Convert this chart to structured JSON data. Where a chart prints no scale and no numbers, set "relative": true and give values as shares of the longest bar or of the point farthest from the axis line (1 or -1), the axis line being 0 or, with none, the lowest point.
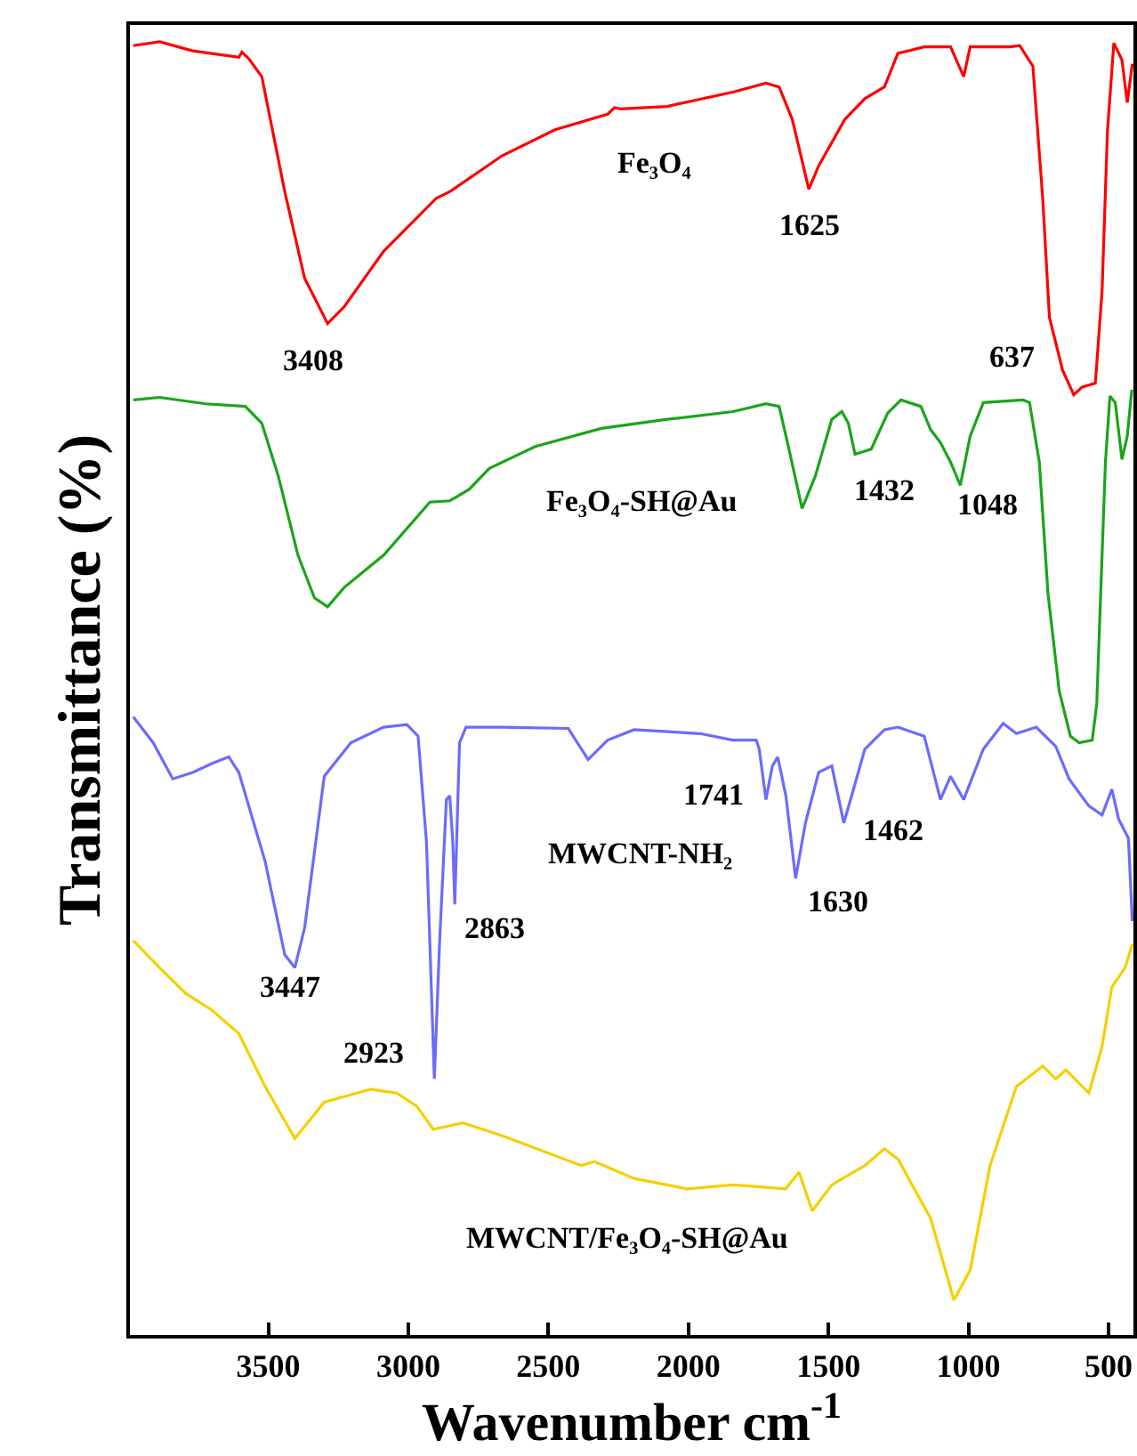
{
  "chart_data": {
    "type": "line",
    "relative": true,
    "xlabel": "Wavenumber cm$^{-1}$",
    "ylabel": "Transmittance (%)",
    "xlim": [
      3994,
      411
    ],
    "xticks": [
      3500,
      3000,
      2500,
      2000,
      1500,
      1000,
      500
    ],
    "grid": false,
    "marker": "none",
    "line_style": "solid",
    "series": [
      {
        "color": "#ff0000",
        "x": [
          3982,
          3888,
          3770,
          3605,
          3594,
          3570,
          3523,
          3488,
          3441,
          3370,
          3288,
          3229,
          3088,
          2900,
          2852,
          2664,
          2476,
          2288,
          2264,
          2241,
          2076,
          1841,
          1723,
          1676,
          1629,
          1570,
          1535,
          1441,
          1370,
          1300,
          1252,
          1158,
          1064,
          1017,
          994,
          852,
          817,
          770,
          735,
          711,
          664,
          624,
          594,
          547,
          523,
          504,
          481,
          452,
          433,
          415
        ],
        "values": [
          0.997,
          1,
          0.993,
          0.988,
          0.992,
          0.987,
          0.973,
          0.935,
          0.884,
          0.817,
          0.782,
          0.795,
          0.838,
          0.879,
          0.884,
          0.912,
          0.932,
          0.944,
          0.949,
          0.948,
          0.95,
          0.961,
          0.968,
          0.965,
          0.94,
          0.886,
          0.904,
          0.94,
          0.956,
          0.965,
          0.991,
          0.996,
          0.996,
          0.973,
          0.996,
          0.996,
          0.997,
          0.981,
          0.879,
          0.787,
          0.746,
          0.727,
          0.733,
          0.736,
          0.807,
          0.93,
          0.999,
          0.986,
          0.953,
          0.983
        ]
      },
      {
        "color": "#1aa51a",
        "x": [
          3982,
          3888,
          3723,
          3582,
          3523,
          3464,
          3394,
          3335,
          3288,
          3229,
          3088,
          2923,
          2852,
          2782,
          2711,
          2547,
          2311,
          2076,
          1841,
          1723,
          1676,
          1641,
          1594,
          1547,
          1488,
          1452,
          1429,
          1405,
          1347,
          1288,
          1241,
          1170,
          1135,
          1100,
          1064,
          1029,
          994,
          947,
          805,
          782,
          747,
          716,
          676,
          636,
          605,
          558,
          542,
          528,
          511,
          495,
          476,
          452,
          433,
          417
        ],
        "values": [
          0.723,
          0.725,
          0.72,
          0.718,
          0.705,
          0.664,
          0.603,
          0.57,
          0.563,
          0.578,
          0.603,
          0.644,
          0.645,
          0.654,
          0.67,
          0.687,
          0.701,
          0.708,
          0.714,
          0.72,
          0.718,
          0.685,
          0.639,
          0.664,
          0.708,
          0.714,
          0.705,
          0.681,
          0.685,
          0.713,
          0.723,
          0.718,
          0.7,
          0.69,
          0.675,
          0.657,
          0.695,
          0.721,
          0.723,
          0.721,
          0.675,
          0.573,
          0.498,
          0.463,
          0.458,
          0.46,
          0.488,
          0.573,
          0.675,
          0.726,
          0.721,
          0.677,
          0.695,
          0.731
        ]
      },
      {
        "color": "#6b6bff",
        "x": [
          3982,
          3911,
          3841,
          3770,
          3700,
          3641,
          3605,
          3511,
          3441,
          3405,
          3370,
          3300,
          3205,
          3088,
          3005,
          2965,
          2935,
          2907,
          2888,
          2864,
          2852,
          2841,
          2834,
          2817,
          2794,
          2664,
          2429,
          2358,
          2288,
          2194,
          1958,
          1841,
          1758,
          1747,
          1723,
          1700,
          1681,
          1652,
          1617,
          1582,
          1535,
          1488,
          1445,
          1417,
          1370,
          1300,
          1252,
          1158,
          1100,
          1064,
          1017,
          947,
          876,
          829,
          758,
          688,
          641,
          570,
          523,
          488,
          464,
          429,
          415
        ],
        "values": [
          0.478,
          0.458,
          0.43,
          0.435,
          0.442,
          0.447,
          0.435,
          0.366,
          0.294,
          0.284,
          0.315,
          0.432,
          0.458,
          0.47,
          0.472,
          0.463,
          0.381,
          0.198,
          0.305,
          0.414,
          0.417,
          0.381,
          0.333,
          0.458,
          0.47,
          0.47,
          0.469,
          0.445,
          0.46,
          0.468,
          0.465,
          0.46,
          0.46,
          0.453,
          0.414,
          0.44,
          0.447,
          0.417,
          0.353,
          0.396,
          0.435,
          0.44,
          0.396,
          0.417,
          0.453,
          0.468,
          0.47,
          0.463,
          0.414,
          0.432,
          0.414,
          0.453,
          0.473,
          0.465,
          0.47,
          0.455,
          0.43,
          0.409,
          0.402,
          0.422,
          0.399,
          0.384,
          0.32
        ]
      },
      {
        "color": "#f5d000",
        "x": [
          3982,
          3888,
          3794,
          3700,
          3605,
          3511,
          3405,
          3300,
          3135,
          3041,
          2970,
          2911,
          2805,
          2664,
          2382,
          2335,
          2194,
          2005,
          1841,
          1652,
          1605,
          1558,
          1488,
          1370,
          1300,
          1252,
          1135,
          1052,
          994,
          923,
          829,
          735,
          688,
          652,
          570,
          523,
          488,
          441,
          415
        ],
        "values": [
          0.305,
          0.284,
          0.264,
          0.251,
          0.233,
          0.192,
          0.152,
          0.18,
          0.19,
          0.187,
          0.177,
          0.159,
          0.164,
          0.154,
          0.131,
          0.134,
          0.121,
          0.113,
          0.116,
          0.113,
          0.126,
          0.096,
          0.116,
          0.131,
          0.144,
          0.136,
          0.09,
          0.027,
          0.05,
          0.131,
          0.192,
          0.208,
          0.198,
          0.205,
          0.187,
          0.223,
          0.269,
          0.284,
          0.302
        ]
      }
    ],
    "annotations": [
      "Fe₃O₄",
      "1625",
      "3408",
      "637",
      "Fe₃O₄-SH@Au",
      "1432",
      "1048",
      "1741",
      "MWCNT-NH₂",
      "1462",
      "1630",
      "2863",
      "3447",
      "2923",
      "MWCNT/Fe₃O₄-SH@Au"
    ]
  }
}
